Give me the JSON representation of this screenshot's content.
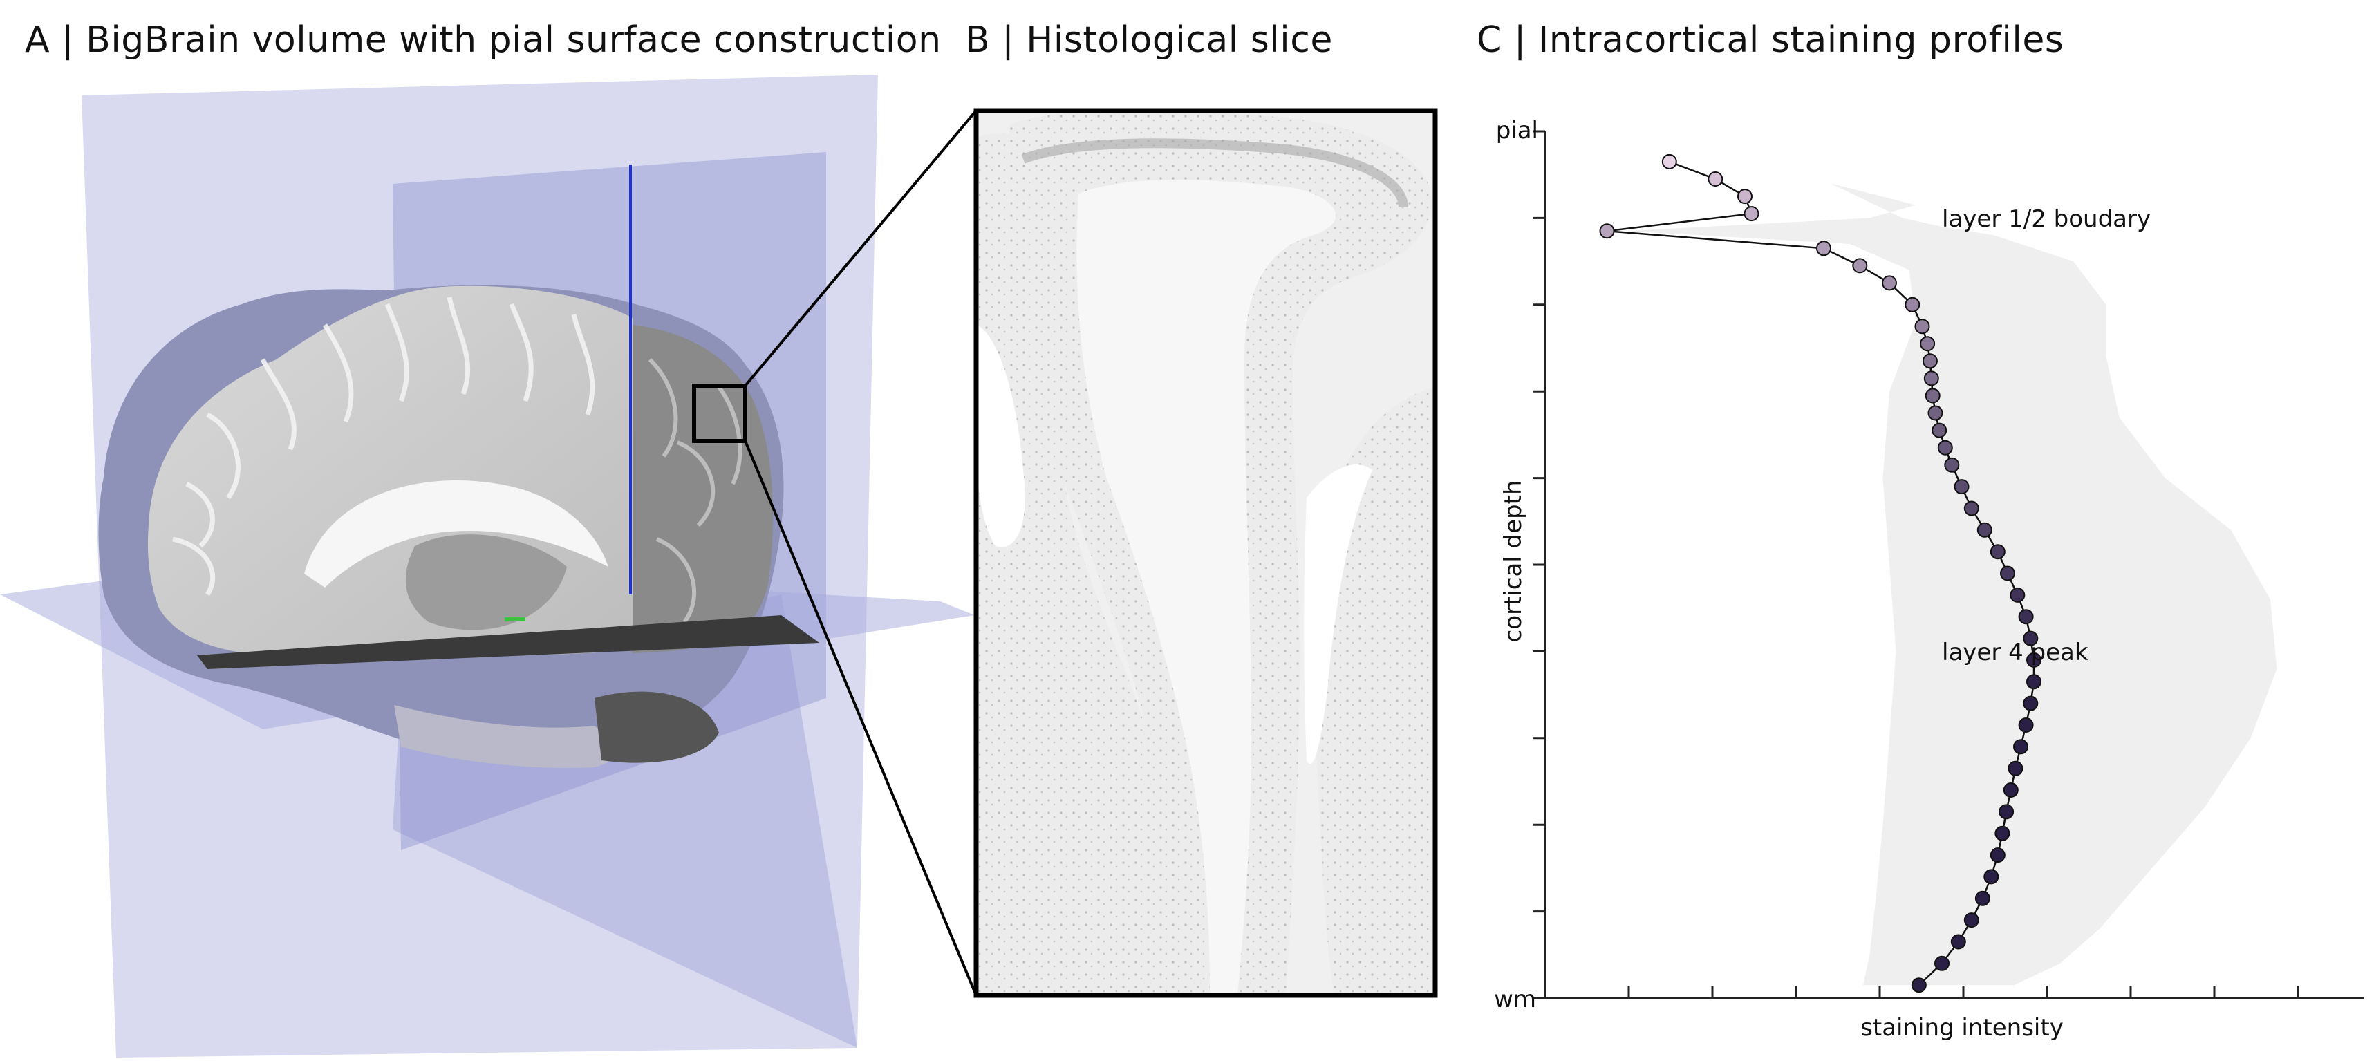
{
  "panels": {
    "a": {
      "title": "A  | BigBrain volume with pial surface construction"
    },
    "b": {
      "title": "B | Histological slice"
    },
    "c": {
      "title": "C | Intracortical staining profiles"
    }
  },
  "colors": {
    "plane": "#9b9fd6",
    "brain_surface": "#8e90b8",
    "inset_frame": "#000000",
    "band": "#efefef",
    "profile_light": "#e8d2e6",
    "profile_dark": "#2a1f45"
  },
  "chart_data": {
    "type": "line",
    "title": "",
    "xlabel": "staining intensity",
    "ylabel": "cortical depth",
    "ytick_labels": {
      "top": "pial",
      "bottom": "wm"
    },
    "xlim": [
      0,
      100
    ],
    "ylim": [
      0,
      100
    ],
    "grid": false,
    "points": [
      {
        "x": 10.5,
        "y": 3.5
      },
      {
        "x": 17.5,
        "y": 5.5
      },
      {
        "x": 22.0,
        "y": 7.5
      },
      {
        "x": 23.0,
        "y": 9.5
      },
      {
        "x": 1.0,
        "y": 11.5
      },
      {
        "x": 34.0,
        "y": 13.5
      },
      {
        "x": 39.5,
        "y": 15.5
      },
      {
        "x": 44.0,
        "y": 17.5
      },
      {
        "x": 47.5,
        "y": 20.0
      },
      {
        "x": 49.0,
        "y": 22.5
      },
      {
        "x": 49.8,
        "y": 24.5
      },
      {
        "x": 50.2,
        "y": 26.5
      },
      {
        "x": 50.4,
        "y": 28.5
      },
      {
        "x": 50.6,
        "y": 30.5
      },
      {
        "x": 51.0,
        "y": 32.5
      },
      {
        "x": 51.6,
        "y": 34.5
      },
      {
        "x": 52.5,
        "y": 36.5
      },
      {
        "x": 53.5,
        "y": 38.5
      },
      {
        "x": 55.0,
        "y": 41.0
      },
      {
        "x": 56.5,
        "y": 43.5
      },
      {
        "x": 58.5,
        "y": 46.0
      },
      {
        "x": 60.5,
        "y": 48.5
      },
      {
        "x": 62.0,
        "y": 51.0
      },
      {
        "x": 63.5,
        "y": 53.5
      },
      {
        "x": 64.8,
        "y": 56.0
      },
      {
        "x": 65.5,
        "y": 58.5
      },
      {
        "x": 66.0,
        "y": 61.0
      },
      {
        "x": 66.0,
        "y": 63.5
      },
      {
        "x": 65.5,
        "y": 66.0
      },
      {
        "x": 64.8,
        "y": 68.5
      },
      {
        "x": 64.0,
        "y": 71.0
      },
      {
        "x": 63.2,
        "y": 73.5
      },
      {
        "x": 62.5,
        "y": 76.0
      },
      {
        "x": 61.8,
        "y": 78.5
      },
      {
        "x": 61.2,
        "y": 81.0
      },
      {
        "x": 60.5,
        "y": 83.5
      },
      {
        "x": 59.5,
        "y": 86.0
      },
      {
        "x": 58.2,
        "y": 88.5
      },
      {
        "x": 56.5,
        "y": 91.0
      },
      {
        "x": 54.5,
        "y": 93.5
      },
      {
        "x": 52.0,
        "y": 96.0
      },
      {
        "x": 48.5,
        "y": 98.5
      }
    ],
    "band_left": [
      [
        15,
        3
      ],
      [
        35,
        6
      ],
      [
        48,
        8.5
      ],
      [
        41,
        10
      ],
      [
        4,
        11.5
      ],
      [
        38,
        13
      ],
      [
        47,
        16
      ],
      [
        48,
        22
      ],
      [
        44,
        30
      ],
      [
        43,
        40
      ],
      [
        44,
        50
      ],
      [
        45,
        60
      ],
      [
        44,
        70
      ],
      [
        43,
        80
      ],
      [
        42,
        88
      ],
      [
        41,
        95
      ],
      [
        40,
        98.5
      ]
    ],
    "band_right": [
      [
        63,
        98.5
      ],
      [
        70,
        96
      ],
      [
        76,
        92
      ],
      [
        84,
        85
      ],
      [
        92,
        78
      ],
      [
        99,
        70
      ],
      [
        103,
        62
      ],
      [
        102,
        54
      ],
      [
        96,
        46
      ],
      [
        86,
        40
      ],
      [
        79,
        33
      ],
      [
        77,
        26
      ],
      [
        77,
        20
      ],
      [
        72,
        15
      ],
      [
        60,
        12
      ],
      [
        52,
        11
      ],
      [
        46,
        10
      ],
      [
        35,
        6
      ],
      [
        15,
        3
      ]
    ],
    "annotations": [
      {
        "text": "layer 1/2 boudary",
        "x": 52,
        "y": 11
      },
      {
        "text": "layer 4 peak",
        "x": 52,
        "y": 61
      }
    ]
  }
}
